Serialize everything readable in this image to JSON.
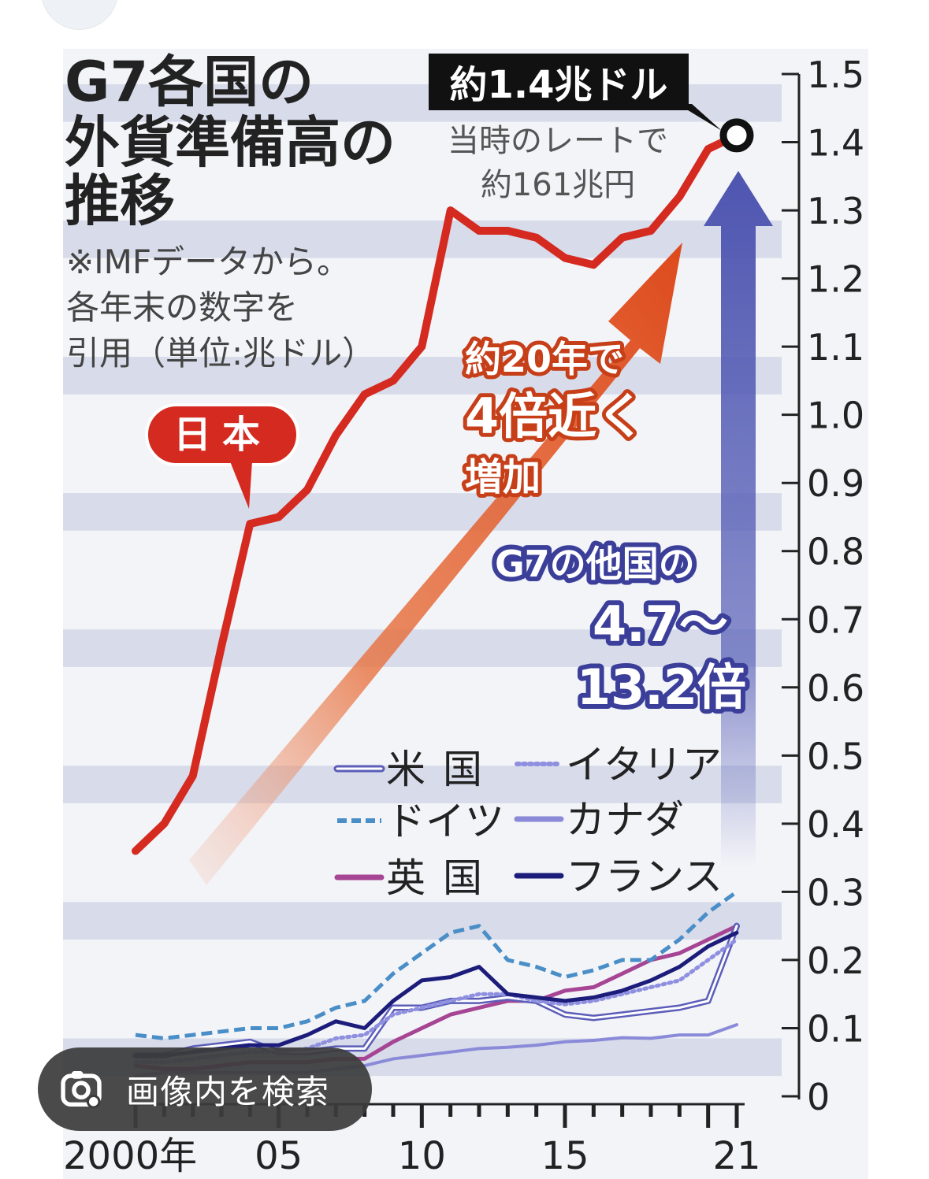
{
  "lens": {
    "label": "画像内を検索",
    "icon": "lens-icon"
  },
  "chart_data": {
    "type": "line",
    "title": "G7各国の外貨準備高の推移",
    "note": [
      "※IMFデータから。",
      "各年末の数字を",
      "引用（単位:兆ドル）"
    ],
    "x_tick_labels": [
      {
        "year": 2000,
        "label": "2000年"
      },
      {
        "year": 2005,
        "label": "05"
      },
      {
        "year": 2010,
        "label": "10"
      },
      {
        "year": 2015,
        "label": "15"
      },
      {
        "year": 2021,
        "label": "21"
      }
    ],
    "xlim": [
      2000,
      2021
    ],
    "ylim": [
      0,
      1.5
    ],
    "y_ticks": [
      "0",
      "0.1",
      "0.2",
      "0.3",
      "0.4",
      "0.5",
      "0.6",
      "0.7",
      "0.8",
      "0.9",
      "1.0",
      "1.1",
      "1.2",
      "1.3",
      "1.4",
      "1.5"
    ],
    "grid": "horizontal bands",
    "series": [
      {
        "name": "日本",
        "color": "#d42a20",
        "style": "thick",
        "x": [
          2000,
          2001,
          2002,
          2003,
          2004,
          2005,
          2006,
          2007,
          2008,
          2009,
          2010,
          2011,
          2012,
          2013,
          2014,
          2015,
          2016,
          2017,
          2018,
          2019,
          2020,
          2021
        ],
        "y": [
          0.36,
          0.4,
          0.47,
          0.66,
          0.84,
          0.85,
          0.89,
          0.97,
          1.03,
          1.05,
          1.1,
          1.3,
          1.27,
          1.27,
          1.26,
          1.23,
          1.22,
          1.26,
          1.27,
          1.32,
          1.39,
          1.41
        ]
      },
      {
        "name": "米国",
        "color": "#5b5db8",
        "style": "double",
        "x": [
          2000,
          2001,
          2002,
          2003,
          2004,
          2005,
          2006,
          2007,
          2008,
          2009,
          2010,
          2011,
          2012,
          2013,
          2014,
          2015,
          2016,
          2017,
          2018,
          2019,
          2020,
          2021
        ],
        "y": [
          0.06,
          0.06,
          0.07,
          0.075,
          0.08,
          0.065,
          0.065,
          0.07,
          0.07,
          0.13,
          0.13,
          0.14,
          0.14,
          0.145,
          0.14,
          0.12,
          0.115,
          0.12,
          0.125,
          0.13,
          0.14,
          0.25
        ]
      },
      {
        "name": "イタリア",
        "color": "#8f8fe0",
        "style": "dotted",
        "x": [
          2000,
          2001,
          2002,
          2003,
          2004,
          2005,
          2006,
          2007,
          2008,
          2009,
          2010,
          2011,
          2012,
          2013,
          2014,
          2015,
          2016,
          2017,
          2018,
          2019,
          2020,
          2021
        ],
        "y": [
          0.05,
          0.05,
          0.055,
          0.06,
          0.065,
          0.065,
          0.07,
          0.085,
          0.09,
          0.12,
          0.13,
          0.14,
          0.15,
          0.15,
          0.14,
          0.135,
          0.14,
          0.15,
          0.16,
          0.17,
          0.2,
          0.23
        ]
      },
      {
        "name": "ドイツ",
        "color": "#4a8ec8",
        "style": "dashed",
        "x": [
          2000,
          2001,
          2002,
          2003,
          2004,
          2005,
          2006,
          2007,
          2008,
          2009,
          2010,
          2011,
          2012,
          2013,
          2014,
          2015,
          2016,
          2017,
          2018,
          2019,
          2020,
          2021
        ],
        "y": [
          0.09,
          0.085,
          0.09,
          0.095,
          0.1,
          0.1,
          0.11,
          0.13,
          0.14,
          0.18,
          0.21,
          0.24,
          0.25,
          0.2,
          0.19,
          0.175,
          0.185,
          0.2,
          0.2,
          0.23,
          0.27,
          0.3
        ]
      },
      {
        "name": "カナダ",
        "color": "#8a8ad8",
        "style": "solid",
        "x": [
          2000,
          2001,
          2002,
          2003,
          2004,
          2005,
          2006,
          2007,
          2008,
          2009,
          2010,
          2011,
          2012,
          2013,
          2014,
          2015,
          2016,
          2017,
          2018,
          2019,
          2020,
          2021
        ],
        "y": [
          0.03,
          0.035,
          0.035,
          0.035,
          0.035,
          0.035,
          0.035,
          0.04,
          0.045,
          0.055,
          0.06,
          0.065,
          0.07,
          0.072,
          0.075,
          0.08,
          0.082,
          0.086,
          0.085,
          0.09,
          0.09,
          0.105
        ]
      },
      {
        "name": "英国",
        "color": "#a64594",
        "style": "solid",
        "x": [
          2000,
          2001,
          2002,
          2003,
          2004,
          2005,
          2006,
          2007,
          2008,
          2009,
          2010,
          2011,
          2012,
          2013,
          2014,
          2015,
          2016,
          2017,
          2018,
          2019,
          2020,
          2021
        ],
        "y": [
          0.045,
          0.04,
          0.04,
          0.045,
          0.05,
          0.05,
          0.05,
          0.055,
          0.055,
          0.08,
          0.1,
          0.12,
          0.13,
          0.14,
          0.14,
          0.155,
          0.16,
          0.18,
          0.2,
          0.21,
          0.23,
          0.25
        ]
      },
      {
        "name": "フランス",
        "color": "#1c1c7a",
        "style": "solid",
        "x": [
          2000,
          2001,
          2002,
          2003,
          2004,
          2005,
          2006,
          2007,
          2008,
          2009,
          2010,
          2011,
          2012,
          2013,
          2014,
          2015,
          2016,
          2017,
          2018,
          2019,
          2020,
          2021
        ],
        "y": [
          0.06,
          0.06,
          0.065,
          0.07,
          0.075,
          0.075,
          0.09,
          0.11,
          0.1,
          0.14,
          0.17,
          0.175,
          0.19,
          0.15,
          0.145,
          0.14,
          0.145,
          0.155,
          0.17,
          0.19,
          0.22,
          0.24
        ]
      }
    ],
    "legend_placement": "lower-middle",
    "annotations": {
      "peak_label": "約1.4兆ドル",
      "peak_sub": [
        "当時のレートで",
        "約161兆円"
      ],
      "japan_label": "日本",
      "orange_text": [
        "約20年で",
        "4倍近く",
        "増加"
      ],
      "blue_text": [
        "G7の他国の",
        "4.7～",
        "13.2倍"
      ]
    }
  }
}
